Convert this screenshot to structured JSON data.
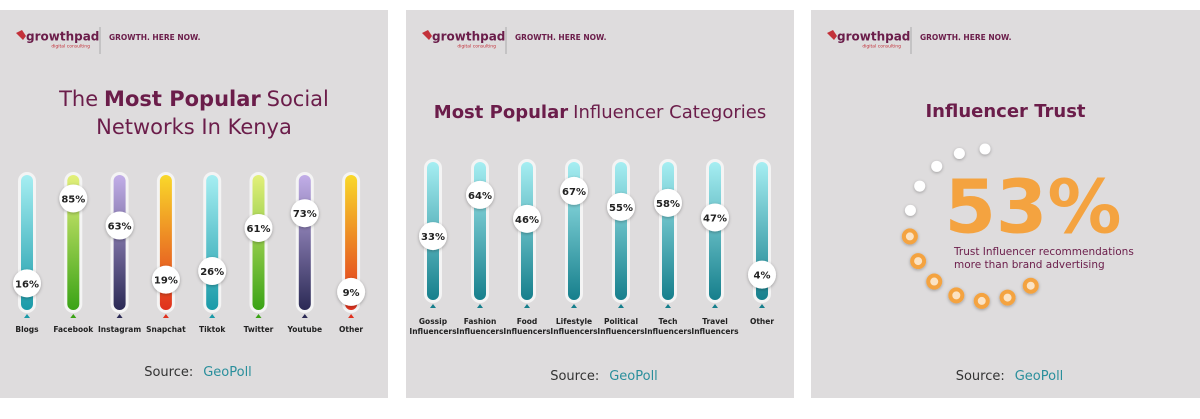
{
  "header": {
    "brand": "growthpad",
    "tagline": "digital consulting",
    "slogan": "GROWTH. HERE NOW."
  },
  "source": {
    "label": "Source:",
    "name": "GeoPoll"
  },
  "chart_data": [
    {
      "type": "bar",
      "title": [
        {
          "text": "The",
          "bold": false
        },
        {
          "text": "Most Popular",
          "bold": true
        },
        {
          "text": "Social",
          "bold": false
        },
        {
          "text": "Networks In Kenya",
          "bold": false,
          "newline": true
        }
      ],
      "categories": [
        "Blogs",
        "Facebook",
        "Instagram",
        "Snapchat",
        "Tiktok",
        "Twitter",
        "Youtube",
        "Other"
      ],
      "values": [
        16,
        85,
        63,
        19,
        26,
        61,
        73,
        9
      ],
      "value_labels": [
        "16%",
        "85%",
        "63%",
        "19%",
        "26%",
        "61%",
        "73%",
        "9%"
      ],
      "colors": [
        [
          "#a6eef2",
          "#1a9aa8"
        ],
        [
          "#e3f07a",
          "#3aa316"
        ],
        [
          "#c2aee8",
          "#2b2a55"
        ],
        [
          "#f9d82a",
          "#e0301e"
        ],
        [
          "#a6eef2",
          "#1a9aa8"
        ],
        [
          "#e3f07a",
          "#3aa316"
        ],
        [
          "#c2aee8",
          "#2b2a55"
        ],
        [
          "#f9d82a",
          "#e0301e"
        ]
      ],
      "ylim": [
        0,
        100
      ]
    },
    {
      "type": "bar",
      "title": [
        {
          "text": "Most Popular",
          "bold": true
        },
        {
          "text": "Influencer Categories",
          "bold": false
        }
      ],
      "categories": [
        "Gossip Influencers",
        "Fashion Influencers",
        "Food Influencers",
        "Lifestyle Influencers",
        "Political Influencers",
        "Tech Influencers",
        "Travel Influencers",
        "Other"
      ],
      "values": [
        33,
        64,
        46,
        67,
        55,
        58,
        47,
        4
      ],
      "value_labels": [
        "33%",
        "64%",
        "46%",
        "67%",
        "55%",
        "58%",
        "47%",
        "4%"
      ],
      "colors": [
        [
          "#a6eef2",
          "#167f8c"
        ],
        [
          "#a6eef2",
          "#167f8c"
        ],
        [
          "#a6eef2",
          "#167f8c"
        ],
        [
          "#a6eef2",
          "#167f8c"
        ],
        [
          "#a6eef2",
          "#167f8c"
        ],
        [
          "#a6eef2",
          "#167f8c"
        ],
        [
          "#a6eef2",
          "#167f8c"
        ],
        [
          "#a6eef2",
          "#167f8c"
        ]
      ],
      "ylim": [
        0,
        100
      ]
    },
    {
      "type": "gauge",
      "title": [
        {
          "text": "Influencer Trust",
          "bold": true
        }
      ],
      "value": 53,
      "value_label": "53%",
      "caption": [
        "Trust Influencer recommendations",
        "more than brand advertising"
      ],
      "color": "#f4a340",
      "ylim": [
        0,
        100
      ]
    }
  ]
}
